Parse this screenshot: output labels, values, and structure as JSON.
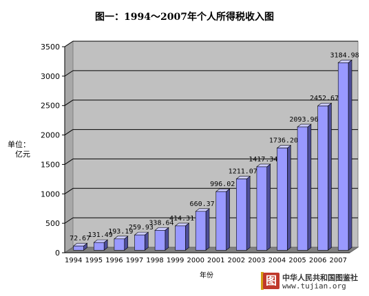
{
  "title": "图一：1994～2007年个人所得税收入图",
  "chart_data": {
    "type": "bar",
    "title": "图一：1994～2007年个人所得税收入图",
    "ylabel_line1": "单位：",
    "ylabel_line2": "亿元",
    "xlabel": "年份",
    "categories": [
      "1994",
      "1995",
      "1996",
      "1997",
      "1998",
      "1999",
      "2000",
      "2001",
      "2002",
      "2003",
      "2004",
      "2005",
      "2006",
      "2007"
    ],
    "values": [
      72.67,
      131.49,
      193.19,
      259.93,
      338.64,
      414.31,
      660.37,
      996.02,
      1211.07,
      1417.34,
      1736.2,
      2093.96,
      2452.67,
      3184.98
    ],
    "value_labels": [
      "72.67",
      "131.49",
      "193.19",
      "259.93",
      "338.64",
      "414.31",
      "660.37",
      "996.02",
      "1211.07",
      "1417.34",
      "1736.20",
      "2093.96",
      "2452.67",
      "3184.98"
    ],
    "ylim": [
      0,
      3500
    ],
    "yticks": [
      0,
      500,
      1000,
      1500,
      2000,
      2500,
      3000,
      3500
    ],
    "grid": true,
    "legend": "none"
  },
  "colors": {
    "bar_front": "#9999ff",
    "bar_side": "#4d4d99",
    "bar_top": "#ccccff",
    "wall": "#c0c0c0",
    "floor": "#808080"
  },
  "watermark": {
    "logo_char": "图",
    "name": "中华人民共和国图鉴社",
    "url": "www.tujian.org"
  }
}
